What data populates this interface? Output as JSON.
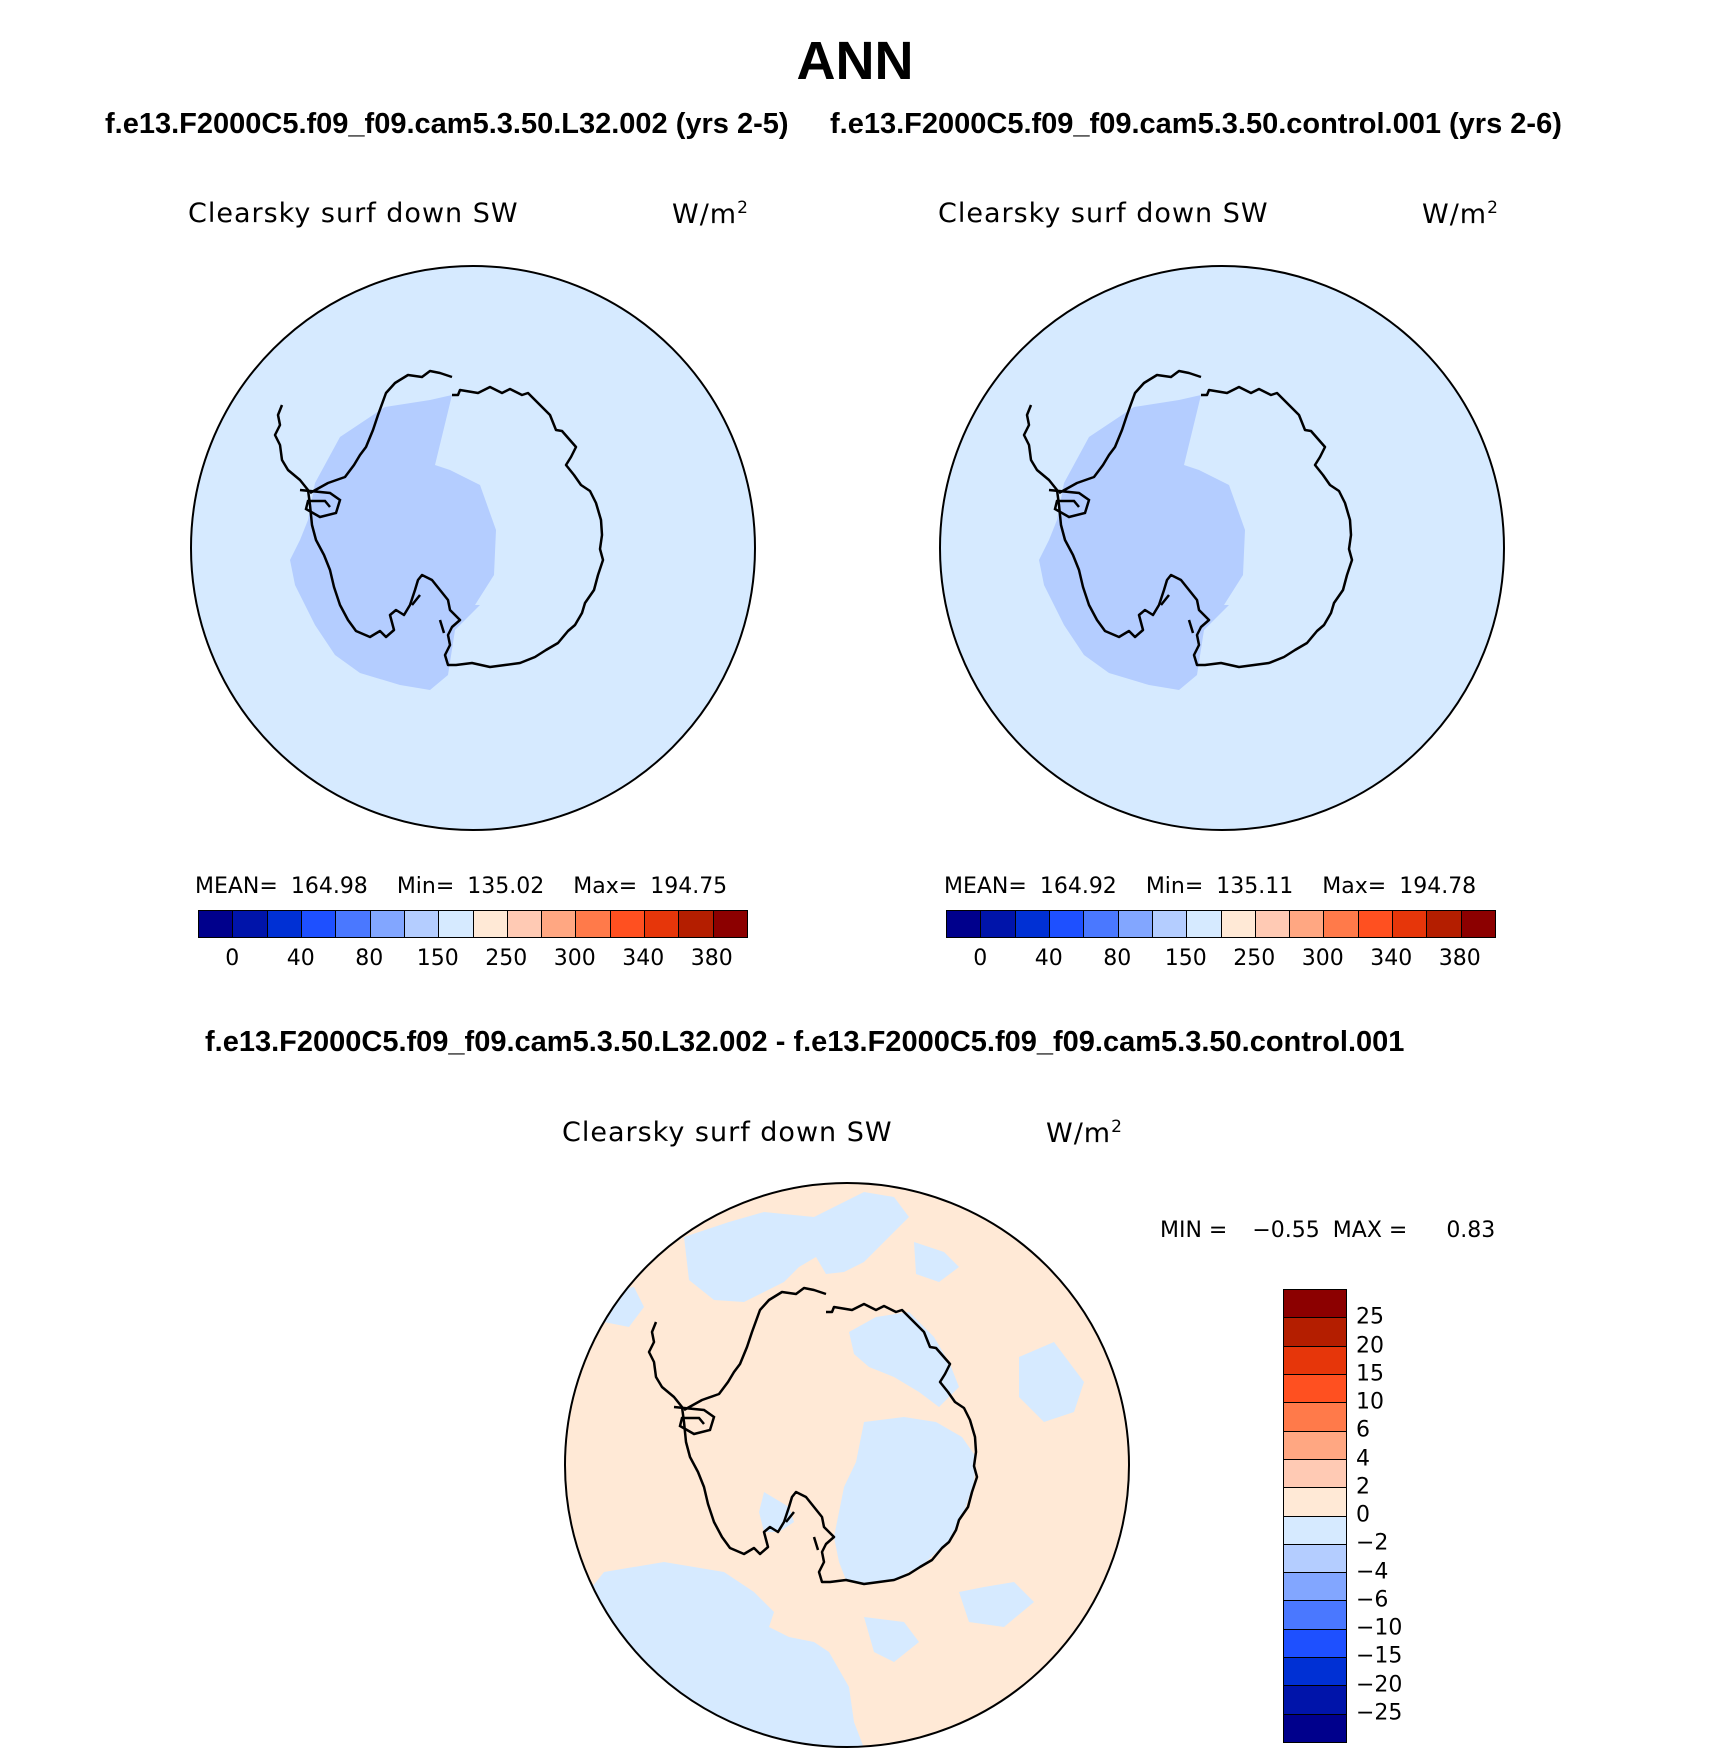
{
  "figure": {
    "title": "ANN"
  },
  "panels": [
    {
      "case_title": "f.e13.F2000C5.f09_f09.cam5.3.50.L32.002 (yrs 2-5)",
      "variable": "Clearsky surf down SW",
      "units": "W/m",
      "units_exp": "2",
      "stats": {
        "mean_label": "MEAN=",
        "mean": "164.98",
        "min_label": "Min=",
        "min": "135.02",
        "max_label": "Max=",
        "max": "194.75"
      },
      "colors": {
        "ocean": "#d6eaff",
        "interior_low": "#b4cdff"
      }
    },
    {
      "case_title": "f.e13.F2000C5.f09_f09.cam5.3.50.control.001 (yrs 2-6)",
      "variable": "Clearsky surf down SW",
      "units": "W/m",
      "units_exp": "2",
      "stats": {
        "mean_label": "MEAN=",
        "mean": "164.92",
        "min_label": "Min=",
        "min": "135.11",
        "max_label": "Max=",
        "max": "194.78"
      },
      "colors": {
        "ocean": "#d6eaff",
        "interior_low": "#b4cdff"
      }
    }
  ],
  "abs_colorbar": {
    "colors": [
      "#00008c",
      "#0014aa",
      "#0030d4",
      "#1e50ff",
      "#4a78ff",
      "#82a6ff",
      "#b4cdff",
      "#d6eaff",
      "#ffe9d6",
      "#ffcab4",
      "#ffa782",
      "#ff7a4a",
      "#ff5020",
      "#e6360a",
      "#b41e00",
      "#8c0000"
    ],
    "labels": [
      "0",
      "40",
      "80",
      "150",
      "250",
      "300",
      "340",
      "380"
    ]
  },
  "diff_panel": {
    "title": "f.e13.F2000C5.f09_f09.cam5.3.50.L32.002 - f.e13.F2000C5.f09_f09.cam5.3.50.control.001",
    "variable": "Clearsky surf down SW",
    "units": "W/m",
    "units_exp": "2",
    "min_label": "MIN =",
    "min": "−0.55",
    "max_label": "MAX =",
    "max": "0.83",
    "colors": {
      "positive": "#ffe9d6",
      "negative": "#d6eaff"
    }
  },
  "diff_colorbar": {
    "colors_top_to_bottom": [
      "#8c0000",
      "#b41e00",
      "#e6360a",
      "#ff5020",
      "#ff7a4a",
      "#ffa782",
      "#ffcab4",
      "#ffe9d6",
      "#d6eaff",
      "#b4cdff",
      "#82a6ff",
      "#4a78ff",
      "#1e50ff",
      "#0030d4",
      "#0014aa",
      "#00008c"
    ],
    "labels_top_to_bottom": [
      "25",
      "20",
      "15",
      "10",
      "6",
      "4",
      "2",
      "0",
      "−2",
      "−4",
      "−6",
      "−10",
      "−15",
      "−20",
      "−25"
    ]
  }
}
